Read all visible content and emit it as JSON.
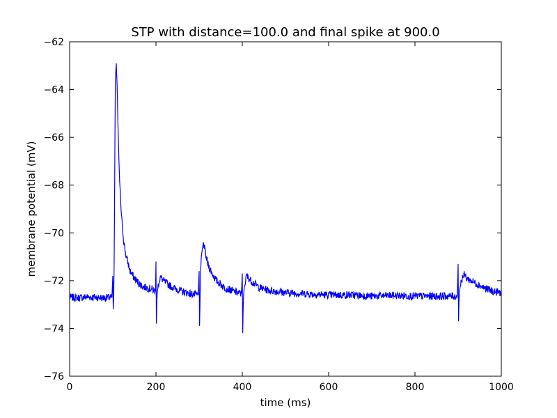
{
  "chart_data": {
    "type": "line",
    "title": "STP with distance=100.0 and final spike at 900.0",
    "xlabel": "time (ms)",
    "ylabel": "membrane potential (mV)",
    "xlim": [
      0,
      1000
    ],
    "ylim": [
      -76,
      -62
    ],
    "x_ticks": [
      0,
      200,
      400,
      600,
      800,
      1000
    ],
    "x_tick_labels": [
      "0",
      "200",
      "400",
      "600",
      "800",
      "1000"
    ],
    "y_ticks": [
      -76,
      -74,
      -72,
      -70,
      -68,
      -66,
      -64,
      -62
    ],
    "y_tick_labels": [
      "−76",
      "−74",
      "−72",
      "−70",
      "−68",
      "−66",
      "−64",
      "−62"
    ],
    "grid": false,
    "line_color": "#0000ff",
    "series": [
      {
        "x": [
          0,
          20,
          40,
          60,
          80,
          98,
          100,
          101,
          102,
          103,
          104,
          105,
          106,
          108,
          110,
          112,
          115,
          120,
          125,
          130,
          140,
          150,
          160,
          170,
          180,
          190,
          199,
          200,
          201,
          202,
          203,
          205,
          210,
          220,
          240,
          260,
          280,
          298,
          300,
          301,
          302,
          303,
          305,
          308,
          310,
          315,
          320,
          330,
          340,
          350,
          360,
          380,
          398,
          400,
          401,
          402,
          403,
          405,
          410,
          420,
          440,
          460,
          500,
          550,
          600,
          650,
          700,
          750,
          800,
          850,
          898,
          900,
          901,
          902,
          903,
          905,
          910,
          915,
          920,
          940,
          960,
          980,
          1000
        ],
        "y": [
          -72.7,
          -72.72,
          -72.68,
          -72.7,
          -72.72,
          -72.7,
          -71.8,
          -73.2,
          -72.8,
          -71.5,
          -69.0,
          -66.0,
          -63.6,
          -62.9,
          -63.8,
          -65.5,
          -67.5,
          -69.3,
          -70.3,
          -70.9,
          -71.6,
          -71.9,
          -72.1,
          -72.25,
          -72.3,
          -72.35,
          -72.45,
          -71.2,
          -73.8,
          -72.9,
          -72.5,
          -72.2,
          -71.85,
          -72.05,
          -72.3,
          -72.45,
          -72.55,
          -72.6,
          -71.6,
          -73.9,
          -73.0,
          -71.8,
          -71.0,
          -70.6,
          -70.4,
          -70.9,
          -71.3,
          -71.7,
          -72.0,
          -72.15,
          -72.3,
          -72.45,
          -72.55,
          -71.7,
          -74.2,
          -73.2,
          -72.6,
          -72.2,
          -71.8,
          -72.0,
          -72.3,
          -72.4,
          -72.5,
          -72.55,
          -72.6,
          -72.6,
          -72.65,
          -72.62,
          -72.65,
          -72.65,
          -72.65,
          -71.3,
          -73.7,
          -72.9,
          -72.5,
          -72.2,
          -71.85,
          -71.75,
          -71.9,
          -72.1,
          -72.3,
          -72.45,
          -72.5
        ]
      }
    ]
  }
}
